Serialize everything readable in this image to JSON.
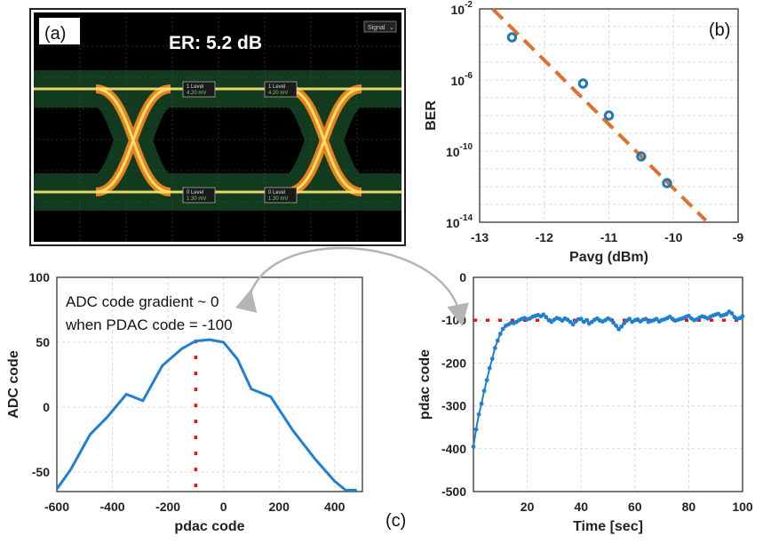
{
  "panels": {
    "a": {
      "label": "(a)",
      "er_text": "ER: 5.2 dB",
      "dropdown_label": "Signal",
      "marker_labels": [
        "1 Level",
        "1 Level",
        "0 Level",
        "0 Level"
      ],
      "marker_values": [
        "4.20 mV",
        "4.20 mV",
        "1.30 mV",
        "1.30 mV"
      ]
    },
    "b": {
      "label": "(b)"
    },
    "c": {
      "label": "(c)"
    }
  },
  "annotation": {
    "line1": "ADC code gradient ~ 0",
    "line2": "when PDAC code = -100"
  },
  "colors": {
    "marker": "#1f77b4",
    "fit": "#e07030",
    "curve": "#1f7fd0",
    "ref": "#ee1111",
    "arrow": "#b5b5b5"
  },
  "chart_data": [
    {
      "id": "ber",
      "type": "scatter",
      "xlabel": "Pavg (dBm)",
      "ylabel": "BER",
      "xlim": [
        -13,
        -9
      ],
      "ylim_exp": [
        -14,
        -2
      ],
      "log_y": true,
      "grid": true,
      "x_ticks": [
        "-13",
        "-12",
        "-11",
        "-10",
        "-9"
      ],
      "y_ticks": [
        "10^-14",
        "10^-10",
        "10^-6",
        "10^-2"
      ],
      "series": [
        {
          "points_x": [
            -12.5,
            -11.4,
            -11.0,
            -10.5,
            -10.1
          ],
          "points_y_exp": [
            -3.6,
            -6.2,
            -8.0,
            -10.3,
            -11.8
          ]
        }
      ],
      "fit_x": [
        -12.8,
        -9.5
      ],
      "fit_y_exp": [
        -2.0,
        -13.9
      ]
    },
    {
      "id": "adc",
      "type": "line",
      "xlabel": "pdac code",
      "ylabel": "ADC code",
      "xlim": [
        -600,
        500
      ],
      "ylim": [
        -65,
        100
      ],
      "grid": true,
      "x_ticks": [
        "-600",
        "-400",
        "-200",
        "0",
        "200",
        "400"
      ],
      "y_ticks": [
        "-50",
        "0",
        "50",
        "100"
      ],
      "x": [
        -600,
        -550,
        -480,
        -420,
        -350,
        -290,
        -220,
        -150,
        -100,
        -50,
        0,
        50,
        100,
        170,
        250,
        330,
        400,
        440,
        480
      ],
      "y": [
        -63,
        -48,
        -21,
        -8,
        10,
        5,
        32,
        45,
        51,
        52,
        50,
        37,
        14,
        8,
        -18,
        -40,
        -57,
        -64,
        -64
      ],
      "ref_x": -100
    },
    {
      "id": "pdac",
      "type": "line",
      "xlabel": "Time [sec]",
      "ylabel": "pdac code",
      "xlim": [
        0,
        100
      ],
      "ylim": [
        -500,
        0
      ],
      "grid": true,
      "x_ticks": [
        "20",
        "40",
        "60",
        "80",
        "100"
      ],
      "y_ticks": [
        "-500",
        "-400",
        "-300",
        "-200",
        "-100",
        "0"
      ],
      "x": [
        0,
        1,
        2,
        3,
        4,
        5,
        6,
        7,
        8,
        9,
        10,
        11,
        12,
        13,
        14,
        15,
        16,
        17,
        18,
        19,
        20,
        21,
        22,
        23,
        24,
        25,
        26,
        27,
        28,
        29,
        30,
        31,
        32,
        33,
        34,
        35,
        36,
        37,
        38,
        39,
        40,
        41,
        42,
        43,
        44,
        45,
        46,
        47,
        48,
        49,
        50,
        51,
        52,
        53,
        54,
        55,
        56,
        57,
        58,
        59,
        60,
        61,
        62,
        63,
        64,
        65,
        66,
        67,
        68,
        69,
        70,
        71,
        72,
        73,
        74,
        75,
        76,
        77,
        78,
        79,
        80,
        81,
        82,
        83,
        84,
        85,
        86,
        87,
        88,
        89,
        90,
        91,
        92,
        93,
        94,
        95,
        96,
        97,
        98,
        99,
        100
      ],
      "y": [
        -395,
        -355,
        -320,
        -295,
        -265,
        -240,
        -212,
        -190,
        -165,
        -148,
        -132,
        -120,
        -113,
        -110,
        -106,
        -107,
        -104,
        -100,
        -97,
        -95,
        -98,
        -96,
        -92,
        -90,
        -88,
        -91,
        -87,
        -93,
        -100,
        -104,
        -99,
        -95,
        -97,
        -101,
        -96,
        -99,
        -104,
        -110,
        -103,
        -98,
        -97,
        -104,
        -100,
        -108,
        -104,
        -99,
        -96,
        -101,
        -103,
        -100,
        -96,
        -99,
        -106,
        -113,
        -121,
        -115,
        -107,
        -101,
        -97,
        -104,
        -100,
        -98,
        -103,
        -99,
        -97,
        -104,
        -102,
        -100,
        -97,
        -103,
        -100,
        -98,
        -95,
        -92,
        -97,
        -101,
        -99,
        -97,
        -95,
        -92,
        -90,
        -96,
        -100,
        -98,
        -94,
        -91,
        -93,
        -96,
        -92,
        -89,
        -87,
        -85,
        -90,
        -88,
        -86,
        -80,
        -84,
        -93,
        -97,
        -95,
        -91
      ],
      "ref_y": -100
    }
  ]
}
